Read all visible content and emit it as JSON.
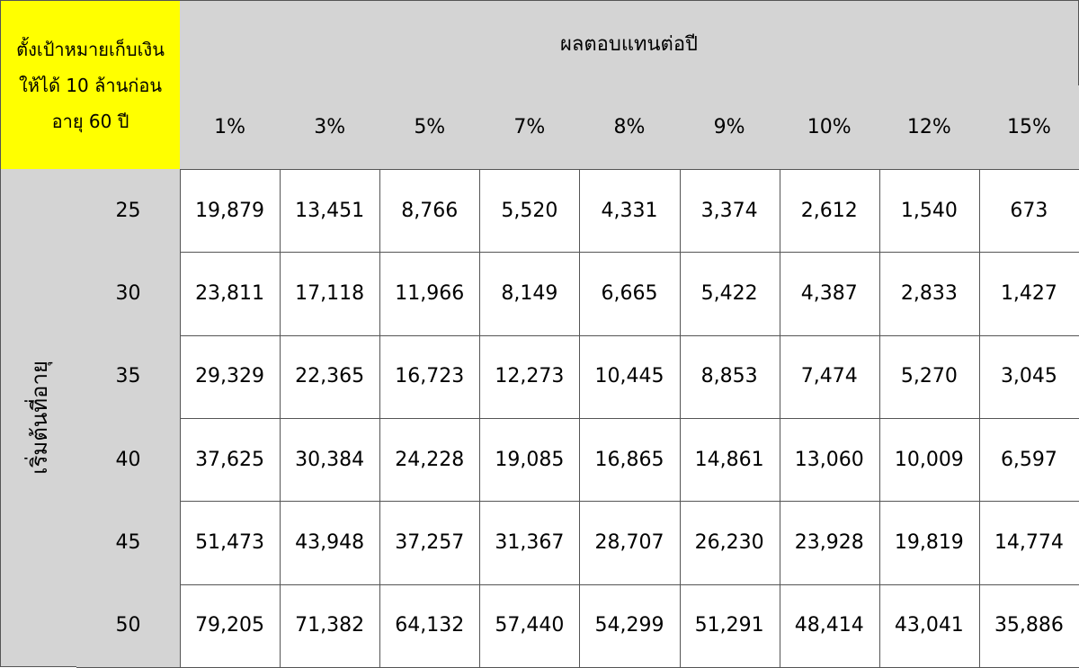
{
  "goal_lines": [
    "ตั้งเป้าหมายเก็บเงิน",
    "ให้ได้ 10 ล้านก่อน",
    "อายุ 60 ปี"
  ],
  "header": "ผลตอบแทนต่อปี",
  "side_label": "เริ่มต้นที่อายุ",
  "columns": [
    "1%",
    "3%",
    "5%",
    "7%",
    "8%",
    "9%",
    "10%",
    "12%",
    "15%"
  ],
  "rows": [
    {
      "age": "25",
      "values": [
        "19,879",
        "13,451",
        "8,766",
        "5,520",
        "4,331",
        "3,374",
        "2,612",
        "1,540",
        "673"
      ]
    },
    {
      "age": "30",
      "values": [
        "23,811",
        "17,118",
        "11,966",
        "8,149",
        "6,665",
        "5,422",
        "4,387",
        "2,833",
        "1,427"
      ]
    },
    {
      "age": "35",
      "values": [
        "29,329",
        "22,365",
        "16,723",
        "12,273",
        "10,445",
        "8,853",
        "7,474",
        "5,270",
        "3,045"
      ]
    },
    {
      "age": "40",
      "values": [
        "37,625",
        "30,384",
        "24,228",
        "19,085",
        "16,865",
        "14,861",
        "13,060",
        "10,009",
        "6,597"
      ]
    },
    {
      "age": "45",
      "values": [
        "51,473",
        "43,948",
        "37,257",
        "31,367",
        "28,707",
        "26,230",
        "23,928",
        "19,819",
        "14,774"
      ]
    },
    {
      "age": "50",
      "values": [
        "79,205",
        "71,382",
        "64,132",
        "57,440",
        "54,299",
        "51,291",
        "48,414",
        "43,041",
        "35,886"
      ]
    }
  ]
}
